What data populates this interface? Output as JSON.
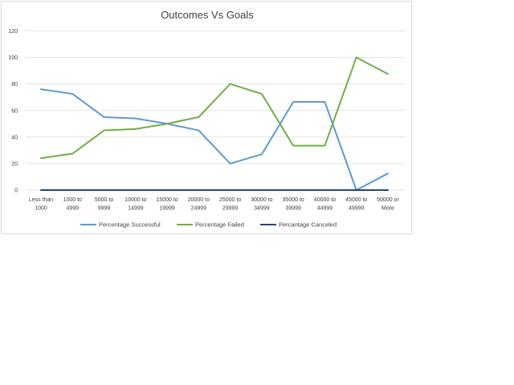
{
  "chart_data": {
    "type": "line",
    "title": "Outcomes Vs Goals",
    "xlabel": "",
    "ylabel": "",
    "ylim": [
      0,
      120
    ],
    "yticks": [
      0,
      20,
      40,
      60,
      80,
      100,
      120
    ],
    "grid": true,
    "legend_position": "bottom",
    "categories": [
      [
        "Less than",
        "1000"
      ],
      [
        "1000 to",
        "4999"
      ],
      [
        "5000 to",
        "9999"
      ],
      [
        "10000 to",
        "14999"
      ],
      [
        "15000 to",
        "19999"
      ],
      [
        "20000 to",
        "24999"
      ],
      [
        "25000 to",
        "29999"
      ],
      [
        "30000 to",
        "34999"
      ],
      [
        "35000 to",
        "39999"
      ],
      [
        "40000 to",
        "44999"
      ],
      [
        "45000 to",
        "49999"
      ],
      [
        "50000 or",
        "More"
      ]
    ],
    "series": [
      {
        "name": "Percentage Successful",
        "color": "#5b9bd5",
        "values": [
          76,
          72.5,
          55,
          54,
          50,
          45,
          20,
          27,
          66.5,
          66.5,
          0,
          12.5
        ]
      },
      {
        "name": "Percentage Failed",
        "color": "#70ad47",
        "values": [
          24,
          27.5,
          45,
          46,
          50,
          55,
          80,
          72.5,
          33.5,
          33.5,
          100,
          87.5
        ]
      },
      {
        "name": "Percantage Canceled",
        "color": "#264478",
        "values": [
          0,
          0,
          0,
          0,
          0,
          0,
          0,
          0,
          0,
          0,
          0,
          0
        ]
      }
    ]
  }
}
